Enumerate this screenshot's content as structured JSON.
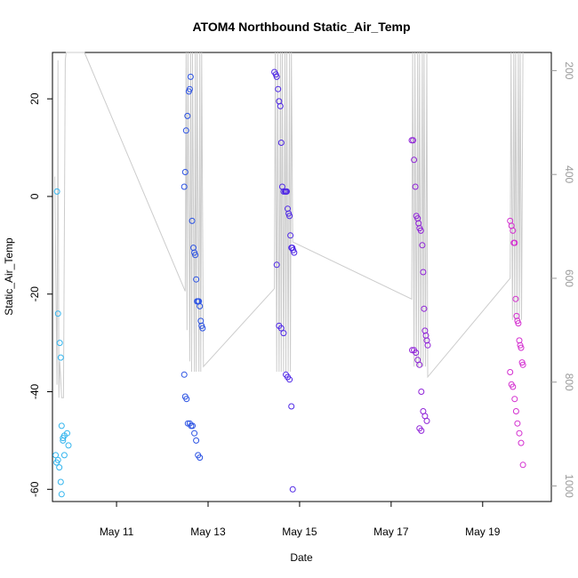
{
  "chart_data": {
    "type": "scatter",
    "title": "ATOM4 Northbound Static_Air_Temp",
    "xlabel": "Date",
    "ylabel": "Static_Air_Temp",
    "xlim": [
      9.6,
      20.5
    ],
    "ylim": [
      -62.5,
      29.5
    ],
    "y2lim": [
      1030,
      165
    ],
    "grid": false,
    "x_ticks": [
      {
        "value": 11,
        "label": "May 11"
      },
      {
        "value": 13,
        "label": "May 13"
      },
      {
        "value": 15,
        "label": "May 15"
      },
      {
        "value": 17,
        "label": "May 17"
      },
      {
        "value": 19,
        "label": "May 19"
      }
    ],
    "y_ticks": [
      {
        "value": 20,
        "label": "20"
      },
      {
        "value": 0,
        "label": "0"
      },
      {
        "value": -20,
        "label": "-20"
      },
      {
        "value": -40,
        "label": "-40"
      },
      {
        "value": -60,
        "label": "-60"
      }
    ],
    "y2_ticks": [
      {
        "value": 200,
        "label": "200"
      },
      {
        "value": 400,
        "label": "400"
      },
      {
        "value": 600,
        "label": "600"
      },
      {
        "value": 800,
        "label": "800"
      },
      {
        "value": 1000,
        "label": "1000"
      }
    ],
    "series": [
      {
        "color": "#33b5ee",
        "x": [
          9.7,
          9.72,
          9.76,
          9.78,
          9.8,
          9.83,
          9.86,
          9.92,
          9.95,
          9.67,
          9.69,
          9.72,
          9.75,
          9.78,
          9.8,
          9.83,
          9.86
        ],
        "y": [
          1,
          -24,
          -30,
          -33,
          -47,
          -49.5,
          -49,
          -48.5,
          -51,
          -53,
          -54.5,
          -54,
          -55.5,
          -58.5,
          -61,
          -50,
          -53
        ]
      },
      {
        "color": "#2c53e3",
        "x": [
          12.48,
          12.5,
          12.52,
          12.55,
          12.58,
          12.6,
          12.62,
          12.65,
          12.68,
          12.7,
          12.72,
          12.74,
          12.76,
          12.78,
          12.8,
          12.82,
          12.84,
          12.86,
          12.88,
          12.48,
          12.5,
          12.53,
          12.56,
          12.6,
          12.63,
          12.66,
          12.7,
          12.74,
          12.78,
          12.82
        ],
        "y": [
          2,
          5,
          13.5,
          16.5,
          21.5,
          22,
          24.5,
          -5,
          -10.5,
          -11.5,
          -12,
          -17,
          -21.5,
          -21.5,
          -21.5,
          -22.5,
          -25.5,
          -26.5,
          -27,
          -36.5,
          -41,
          -41.5,
          -46.5,
          -46.5,
          -47,
          -47,
          -48.5,
          -50,
          -53,
          -53.5
        ]
      },
      {
        "color": "#4f28e6",
        "x": [
          14.45,
          14.48,
          14.5,
          14.53,
          14.55,
          14.58,
          14.6,
          14.62,
          14.65,
          14.68,
          14.7,
          14.72,
          14.74,
          14.76,
          14.78,
          14.8,
          14.82,
          14.84,
          14.86,
          14.88,
          14.5,
          14.55,
          14.6,
          14.65,
          14.7,
          14.74,
          14.78,
          14.82,
          14.85
        ],
        "y": [
          25.5,
          25,
          24.5,
          22,
          19.5,
          18.5,
          11,
          2,
          1,
          1,
          1,
          1,
          -2.5,
          -3.5,
          -4,
          -8,
          -10.5,
          -10.5,
          -11,
          -11.5,
          -14,
          -26.5,
          -27,
          -28,
          -36.5,
          -37,
          -37.5,
          -43,
          -60
        ]
      },
      {
        "color": "#8f22d8",
        "x": [
          17.45,
          17.48,
          17.5,
          17.53,
          17.55,
          17.58,
          17.6,
          17.62,
          17.65,
          17.68,
          17.7,
          17.72,
          17.74,
          17.76,
          17.78,
          17.8,
          17.46,
          17.5,
          17.54,
          17.58,
          17.62,
          17.66,
          17.7,
          17.74,
          17.78,
          17.62,
          17.66
        ],
        "y": [
          11.5,
          11.5,
          7.5,
          2,
          -4,
          -4.5,
          -5.5,
          -6.5,
          -7,
          -10,
          -15.5,
          -23,
          -27.5,
          -28.5,
          -29.5,
          -30.5,
          -31.5,
          -31.5,
          -32,
          -33.5,
          -34.5,
          -40,
          -44,
          -45,
          -46,
          -47.5,
          -48
        ]
      },
      {
        "color": "#d42fd0",
        "x": [
          19.6,
          19.63,
          19.66,
          19.68,
          19.7,
          19.72,
          19.74,
          19.76,
          19.78,
          19.8,
          19.82,
          19.84,
          19.86,
          19.88,
          19.6,
          19.63,
          19.66,
          19.7,
          19.73,
          19.76,
          19.8,
          19.84,
          19.88
        ],
        "y": [
          -5,
          -6,
          -7,
          -9.5,
          -9.5,
          -21,
          -24.5,
          -25.5,
          -26,
          -29.5,
          -30.5,
          -31,
          -34,
          -34.5,
          -36,
          -38.5,
          -39,
          -41.5,
          -44,
          -46.5,
          -48.5,
          -50.5,
          -55
        ]
      }
    ],
    "secondary_line": {
      "color": "#cccccc",
      "x": [
        9.65,
        9.7,
        9.72,
        9.74,
        9.76,
        9.8,
        9.84,
        9.88,
        9.9,
        9.92,
        10.3,
        12.5,
        12.52,
        12.54,
        12.56,
        12.6,
        12.62,
        12.64,
        12.66,
        12.7,
        12.72,
        12.74,
        12.76,
        12.8,
        12.82,
        12.84,
        12.86,
        12.9,
        14.45,
        14.47,
        14.5,
        14.52,
        14.55,
        14.58,
        14.6,
        14.62,
        14.65,
        14.68,
        14.7,
        14.72,
        14.75,
        14.78,
        14.8,
        14.82,
        14.85,
        17.45,
        17.47,
        17.5,
        17.52,
        17.55,
        17.58,
        17.6,
        17.62,
        17.65,
        17.68,
        17.7,
        17.72,
        17.75,
        17.78,
        17.8,
        19.6,
        19.62,
        19.65,
        19.68,
        19.7,
        19.72,
        19.75,
        19.78,
        19.8,
        19.82,
        19.85,
        19.88
      ],
      "y": [
        404,
        805,
        180,
        830,
        760,
        830,
        830,
        180,
        165,
        165,
        165,
        625,
        165,
        700,
        165,
        760,
        165,
        780,
        165,
        780,
        165,
        780,
        165,
        780,
        165,
        780,
        165,
        770,
        620,
        165,
        780,
        165,
        780,
        165,
        780,
        165,
        780,
        165,
        780,
        165,
        780,
        165,
        780,
        165,
        530,
        640,
        165,
        770,
        165,
        770,
        165,
        770,
        165,
        770,
        165,
        770,
        165,
        770,
        165,
        790,
        600,
        165,
        680,
        165,
        680,
        165,
        680,
        165,
        680,
        165,
        680,
        165
      ]
    }
  }
}
